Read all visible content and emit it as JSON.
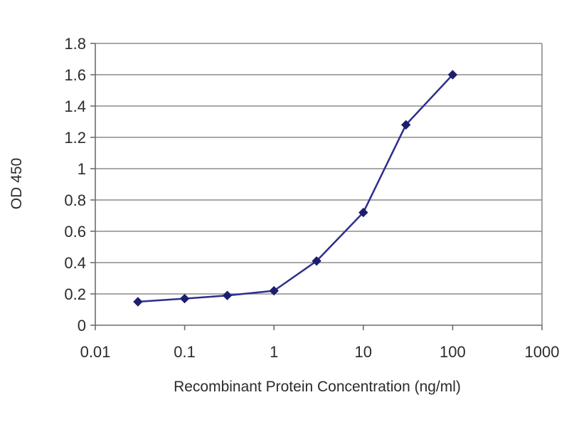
{
  "chart_data": {
    "type": "line",
    "title": "",
    "xlabel": "Recombinant Protein Concentration (ng/ml)",
    "ylabel": "OD 450",
    "x_scale": "log",
    "xlim": [
      0.01,
      1000
    ],
    "ylim": [
      0,
      1.8
    ],
    "x_ticks": [
      0.01,
      0.1,
      1,
      10,
      100,
      1000
    ],
    "x_tick_labels": [
      "0.01",
      "0.1",
      "1",
      "10",
      "100",
      "1000"
    ],
    "y_ticks": [
      0,
      0.2,
      0.4,
      0.6,
      0.8,
      1,
      1.2,
      1.4,
      1.6,
      1.8
    ],
    "y_tick_labels": [
      "0",
      "0.2",
      "0.4",
      "0.6",
      "0.8",
      "1",
      "1.2",
      "1.4",
      "1.6",
      "1.8"
    ],
    "grid": "horizontal",
    "legend": "none",
    "series": [
      {
        "color": "#2c2f8c",
        "marker": "diamond",
        "x": [
          0.03,
          0.1,
          0.3,
          1,
          3,
          10,
          30,
          100
        ],
        "y": [
          0.15,
          0.17,
          0.19,
          0.22,
          0.41,
          0.72,
          1.28,
          1.6
        ]
      }
    ]
  }
}
